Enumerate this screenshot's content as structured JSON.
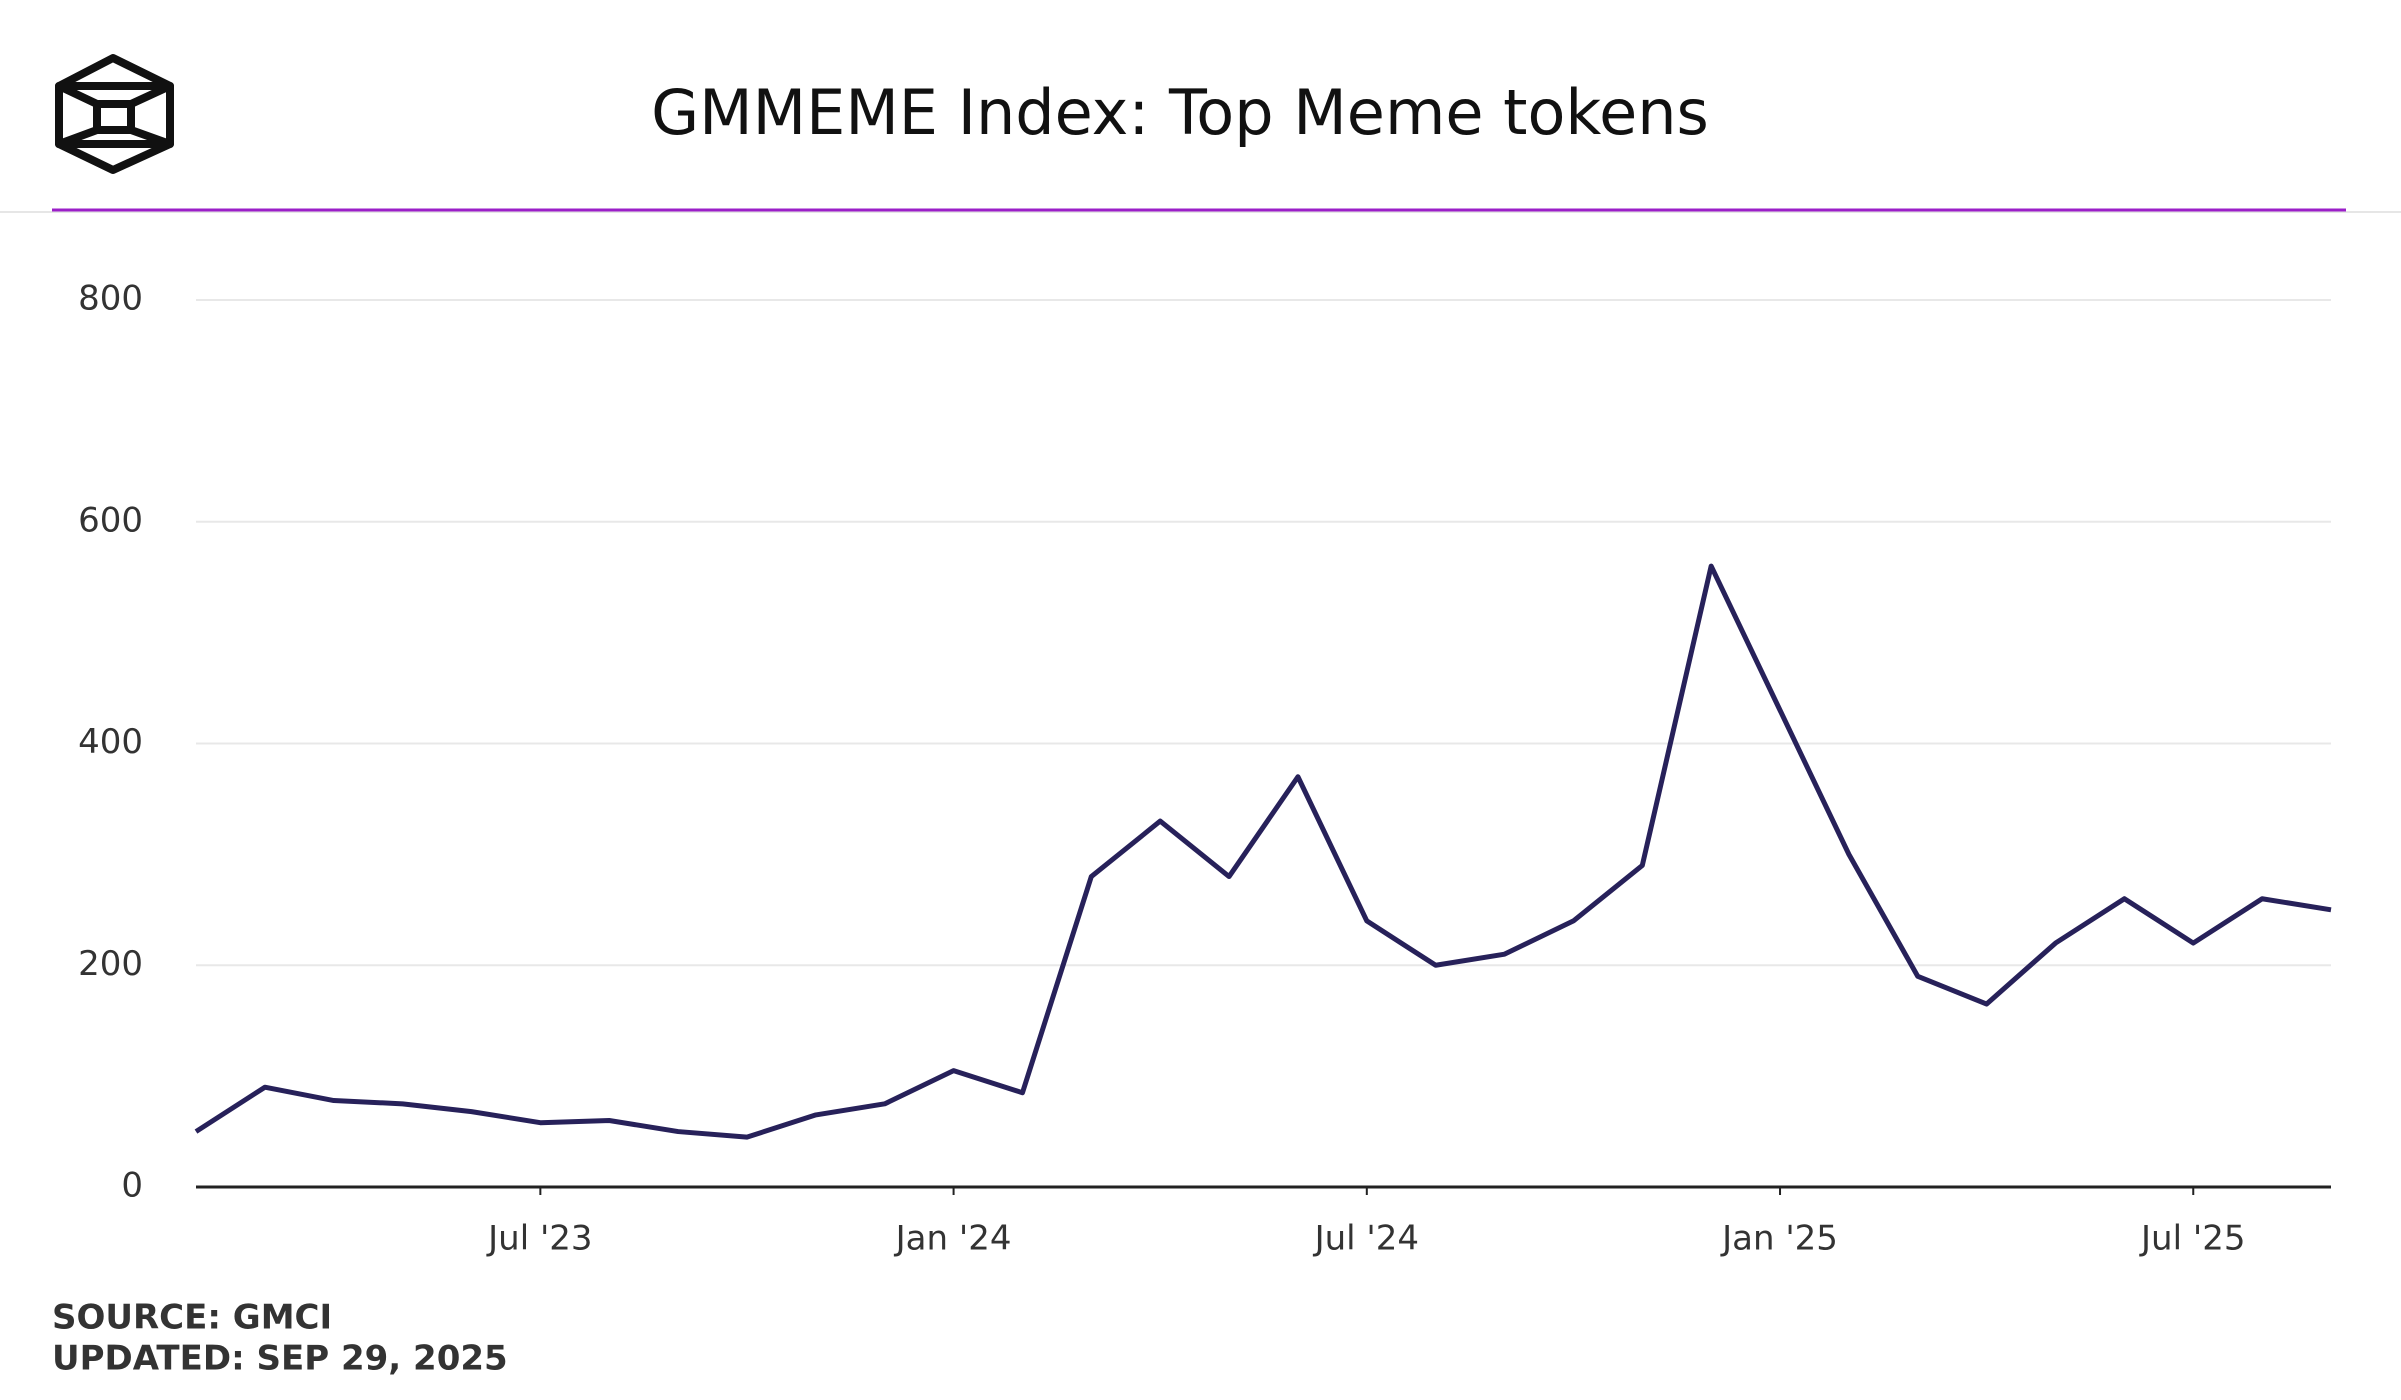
{
  "chart_data": {
    "type": "line",
    "title": "GMMEME Index: Top Meme tokens",
    "source": "SOURCE: GMCI",
    "updated": "UPDATED: SEP 29, 2025",
    "x": [
      "2023-02",
      "2023-03",
      "2023-04",
      "2023-05",
      "2023-06",
      "2023-07",
      "2023-08",
      "2023-09",
      "2023-10",
      "2023-11",
      "2023-12",
      "2024-01",
      "2024-02",
      "2024-03",
      "2024-04",
      "2024-05",
      "2024-06",
      "2024-07",
      "2024-08",
      "2024-09",
      "2024-10",
      "2024-11",
      "2024-12",
      "2025-01",
      "2025-02",
      "2025-03",
      "2025-04",
      "2025-05",
      "2025-06",
      "2025-07",
      "2025-08",
      "2025-09"
    ],
    "series": [
      {
        "name": "GMMEME",
        "color": "#27215a",
        "values": [
          50,
          90,
          78,
          75,
          68,
          58,
          60,
          50,
          45,
          65,
          75,
          105,
          85,
          280,
          330,
          280,
          370,
          240,
          200,
          210,
          240,
          290,
          560,
          430,
          300,
          190,
          165,
          220,
          260,
          220,
          260,
          250
        ]
      }
    ],
    "xlim": [
      "2023-02",
      "2025-09"
    ],
    "xticks": [
      {
        "value": "2023-07",
        "label": "Jul '23"
      },
      {
        "value": "2024-01",
        "label": "Jan '24"
      },
      {
        "value": "2024-07",
        "label": "Jul '24"
      },
      {
        "value": "2025-01",
        "label": "Jan '25"
      },
      {
        "value": "2025-07",
        "label": "Jul '25"
      }
    ],
    "ylim": [
      0,
      800
    ],
    "yticks": [
      0,
      200,
      400,
      600,
      800
    ],
    "grid": true
  }
}
